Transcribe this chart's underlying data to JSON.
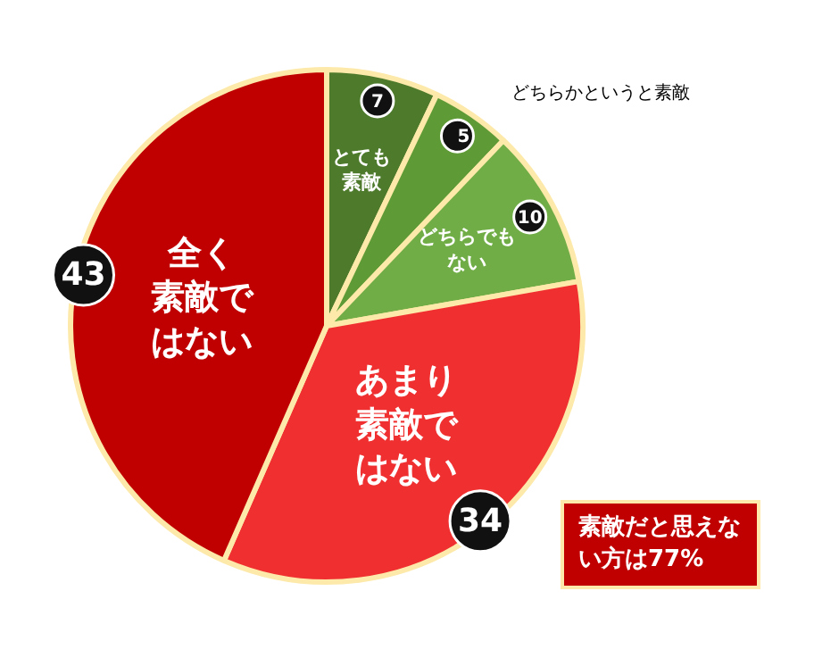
{
  "chart_data": {
    "type": "pie",
    "categories": [
      "とても素敵",
      "どちらかというと素敵",
      "どちらでもない",
      "あまり素敵ではない",
      "全く素敵ではない"
    ],
    "values": [
      7,
      5,
      10,
      34,
      43
    ],
    "colors": [
      "#4e7a2c",
      "#5e9a36",
      "#70ad47",
      "#f03030",
      "#c00000"
    ],
    "data_labels": true,
    "annotations": [
      "素敵だと思えない方は77%"
    ]
  }
}
